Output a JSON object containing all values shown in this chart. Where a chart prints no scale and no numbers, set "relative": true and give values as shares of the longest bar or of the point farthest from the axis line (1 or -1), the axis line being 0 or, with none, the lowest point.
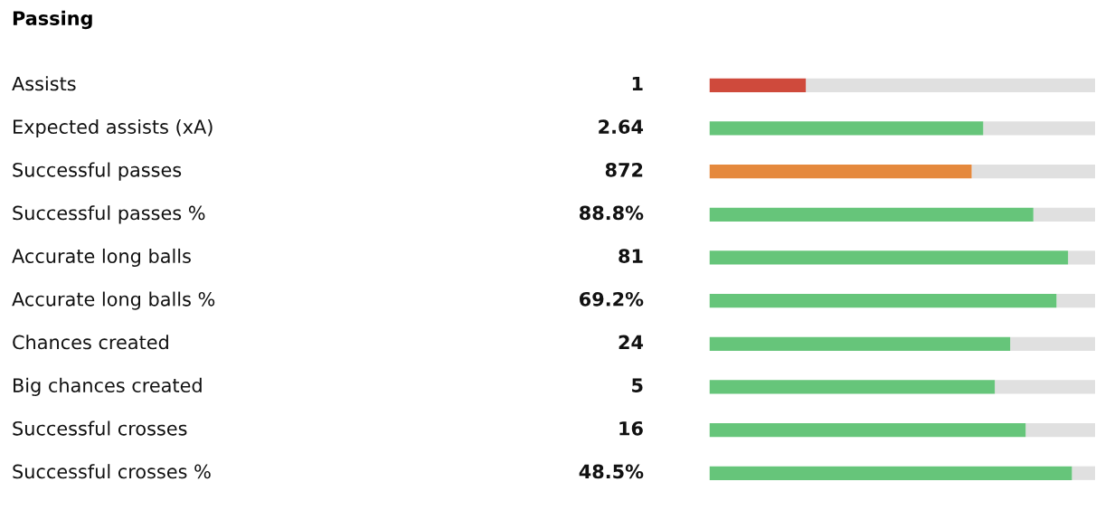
{
  "chart_data": {
    "type": "bar",
    "orientation": "horizontal",
    "stacked": true,
    "relative": true,
    "title": "Passing",
    "categories": [
      "Assists",
      "Expected assists (xA)",
      "Successful passes",
      "Successful passes %",
      "Accurate long balls",
      "Accurate long balls %",
      "Chances created",
      "Big chances created",
      "Successful crosses",
      "Successful crosses %"
    ],
    "series": [
      {
        "colors": [
          "#cf4a3c",
          "#66c57a",
          "#e5893d",
          "#66c57a",
          "#66c57a",
          "#66c57a",
          "#66c57a",
          "#66c57a",
          "#66c57a",
          "#66c57a"
        ],
        "values": [
          0.25,
          0.71,
          0.68,
          0.84,
          0.93,
          0.9,
          0.78,
          0.74,
          0.82,
          0.94
        ]
      },
      {
        "color": "#e0e0e0",
        "values": [
          0.75,
          0.29,
          0.32,
          0.16,
          0.07,
          0.1,
          0.22,
          0.26,
          0.18,
          0.06
        ]
      }
    ],
    "annotations": [
      "1",
      "2.64",
      "872",
      "88.8%",
      "81",
      "69.2%",
      "24",
      "5",
      "16",
      "48.5%"
    ]
  }
}
